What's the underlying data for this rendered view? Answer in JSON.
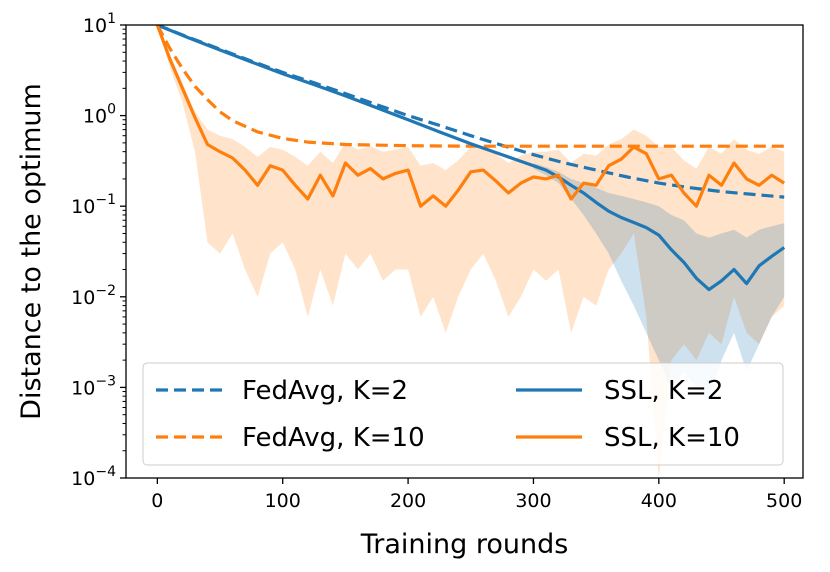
{
  "chart_data": {
    "type": "line",
    "title": "",
    "xlabel": "Training rounds",
    "ylabel": "Distance to the optimum",
    "yscale": "log",
    "xlim": [
      -25,
      515
    ],
    "ylim": [
      0.0001,
      10
    ],
    "x_ticks": [
      0,
      100,
      200,
      300,
      400,
      500
    ],
    "y_tick_labels": [
      {
        "base": "10",
        "exp": "1"
      },
      {
        "base": "10",
        "exp": "0"
      },
      {
        "base": "10",
        "exp": "−1"
      },
      {
        "base": "10",
        "exp": "−2"
      },
      {
        "base": "10",
        "exp": "−3"
      },
      {
        "base": "10",
        "exp": "−4"
      }
    ],
    "y_tick_values": [
      10,
      1,
      0.1,
      0.01,
      0.001,
      0.0001
    ],
    "legend_position": "lower-center",
    "series": [
      {
        "name": "FedAvg, K=2",
        "style": "dashed",
        "color": "#1f77b4",
        "x": [
          0,
          25,
          50,
          75,
          100,
          125,
          150,
          175,
          200,
          225,
          250,
          275,
          300,
          325,
          350,
          375,
          400,
          425,
          450,
          475,
          500
        ],
        "values": [
          10,
          7.3,
          5.4,
          4.0,
          3.0,
          2.3,
          1.75,
          1.32,
          1.0,
          0.78,
          0.6,
          0.47,
          0.37,
          0.3,
          0.25,
          0.21,
          0.18,
          0.16,
          0.145,
          0.135,
          0.126
        ]
      },
      {
        "name": "FedAvg, K=10",
        "style": "dashed",
        "color": "#ff7f0e",
        "x": [
          0,
          10,
          20,
          30,
          40,
          50,
          60,
          80,
          100,
          120,
          150,
          200,
          250,
          300,
          350,
          400,
          450,
          500
        ],
        "values": [
          10,
          5.5,
          3.3,
          2.1,
          1.5,
          1.1,
          0.88,
          0.66,
          0.56,
          0.51,
          0.48,
          0.465,
          0.46,
          0.46,
          0.46,
          0.46,
          0.46,
          0.46
        ]
      },
      {
        "name": "SSL, K=2",
        "style": "solid",
        "color": "#1f77b4",
        "x": [
          0,
          25,
          50,
          75,
          100,
          125,
          150,
          175,
          200,
          225,
          250,
          275,
          300,
          310,
          320,
          330,
          340,
          350,
          360,
          370,
          380,
          390,
          400,
          410,
          420,
          430,
          440,
          450,
          460,
          470,
          480,
          490,
          500
        ],
        "values": [
          10,
          7.2,
          5.3,
          3.9,
          2.9,
          2.2,
          1.65,
          1.22,
          0.9,
          0.66,
          0.49,
          0.37,
          0.28,
          0.25,
          0.21,
          0.17,
          0.14,
          0.11,
          0.088,
          0.075,
          0.066,
          0.058,
          0.048,
          0.033,
          0.024,
          0.016,
          0.012,
          0.015,
          0.02,
          0.014,
          0.022,
          0.028,
          0.035
        ]
      },
      {
        "name": "SSL, K=10",
        "style": "solid",
        "color": "#ff7f0e",
        "x": [
          0,
          10,
          20,
          30,
          40,
          50,
          60,
          70,
          80,
          90,
          100,
          110,
          120,
          130,
          140,
          150,
          160,
          170,
          180,
          190,
          200,
          210,
          220,
          230,
          240,
          250,
          260,
          270,
          280,
          290,
          300,
          310,
          320,
          330,
          340,
          350,
          360,
          370,
          380,
          390,
          400,
          410,
          420,
          430,
          440,
          450,
          460,
          470,
          480,
          490,
          500
        ],
        "values": [
          10,
          4.2,
          2.0,
          0.95,
          0.48,
          0.4,
          0.34,
          0.25,
          0.17,
          0.28,
          0.25,
          0.17,
          0.12,
          0.22,
          0.13,
          0.3,
          0.22,
          0.26,
          0.2,
          0.23,
          0.25,
          0.1,
          0.13,
          0.1,
          0.15,
          0.24,
          0.25,
          0.19,
          0.14,
          0.18,
          0.21,
          0.2,
          0.22,
          0.12,
          0.18,
          0.17,
          0.28,
          0.33,
          0.45,
          0.38,
          0.2,
          0.22,
          0.14,
          0.1,
          0.22,
          0.17,
          0.3,
          0.2,
          0.17,
          0.22,
          0.18
        ]
      }
    ],
    "bands": [
      {
        "series": "SSL, K=10",
        "color": "#ff7f0e",
        "x": [
          0,
          10,
          20,
          30,
          40,
          50,
          60,
          70,
          80,
          90,
          100,
          110,
          120,
          130,
          140,
          150,
          160,
          170,
          180,
          190,
          200,
          210,
          220,
          230,
          240,
          250,
          260,
          270,
          280,
          290,
          300,
          310,
          320,
          330,
          340,
          350,
          360,
          370,
          380,
          390,
          400,
          410,
          420,
          430,
          440,
          450,
          460,
          470,
          480,
          490,
          500
        ],
        "upper": [
          10,
          4.7,
          2.3,
          1.1,
          0.7,
          0.6,
          0.55,
          0.45,
          0.35,
          0.45,
          0.42,
          0.35,
          0.28,
          0.4,
          0.3,
          0.5,
          0.42,
          0.46,
          0.4,
          0.42,
          0.45,
          0.28,
          0.3,
          0.25,
          0.32,
          0.45,
          0.46,
          0.38,
          0.3,
          0.36,
          0.4,
          0.4,
          0.42,
          0.3,
          0.38,
          0.36,
          0.48,
          0.55,
          0.7,
          0.6,
          0.45,
          0.45,
          0.32,
          0.26,
          0.45,
          0.38,
          0.55,
          0.42,
          0.38,
          0.45,
          0.4
        ],
        "lower": [
          10,
          3.4,
          1.4,
          0.4,
          0.04,
          0.03,
          0.05,
          0.02,
          0.01,
          0.03,
          0.04,
          0.02,
          0.006,
          0.02,
          0.008,
          0.03,
          0.02,
          0.03,
          0.015,
          0.02,
          0.02,
          0.006,
          0.01,
          0.004,
          0.01,
          0.02,
          0.03,
          0.015,
          0.006,
          0.01,
          0.02,
          0.015,
          0.02,
          0.004,
          0.01,
          0.008,
          0.02,
          0.03,
          0.05,
          0.006,
          0.0001,
          0.002,
          0.003,
          0.002,
          0.004,
          0.003,
          0.01,
          0.004,
          0.003,
          0.006,
          0.008
        ]
      },
      {
        "series": "SSL, K=2",
        "color": "#1f77b4",
        "x": [
          300,
          310,
          320,
          330,
          340,
          350,
          360,
          370,
          380,
          390,
          400,
          410,
          420,
          430,
          440,
          450,
          460,
          470,
          480,
          490,
          500
        ],
        "upper": [
          0.3,
          0.27,
          0.24,
          0.2,
          0.18,
          0.16,
          0.14,
          0.13,
          0.12,
          0.11,
          0.1,
          0.08,
          0.07,
          0.05,
          0.045,
          0.05,
          0.055,
          0.045,
          0.055,
          0.06,
          0.065
        ],
        "lower": [
          0.26,
          0.22,
          0.18,
          0.12,
          0.08,
          0.05,
          0.03,
          0.015,
          0.008,
          0.004,
          0.002,
          0.001,
          0.0015,
          0.001,
          0.0008,
          0.002,
          0.004,
          0.0015,
          0.003,
          0.006,
          0.01
        ]
      }
    ]
  }
}
